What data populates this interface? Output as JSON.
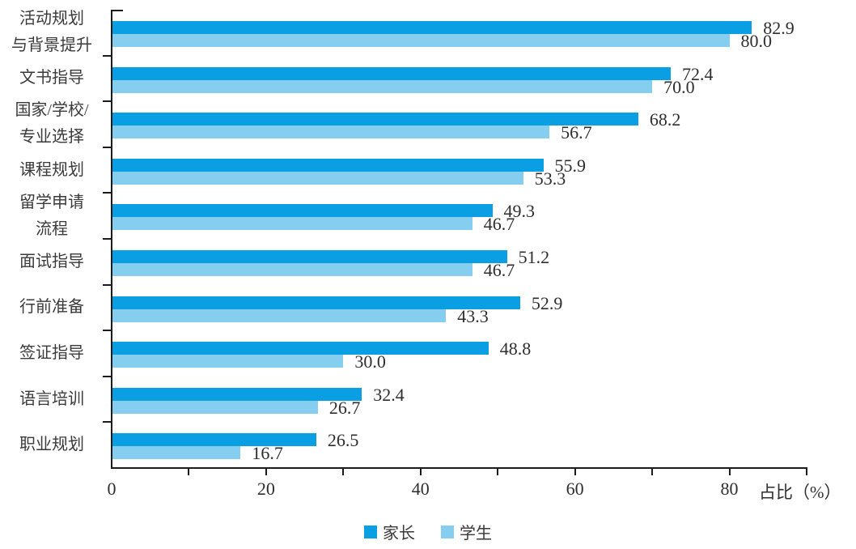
{
  "chart_data": {
    "type": "bar",
    "orientation": "horizontal",
    "categories": [
      "活动规划\n与背景提升",
      "文书指导",
      "国家/学校/\n专业选择",
      "课程规划",
      "留学申请\n流程",
      "面试指导",
      "行前准备",
      "签证指导",
      "语言培训",
      "职业规划"
    ],
    "series": [
      {
        "name": "家长",
        "color": "#0A9EE2",
        "values": [
          82.9,
          72.4,
          68.2,
          55.9,
          49.3,
          51.2,
          52.9,
          48.8,
          32.4,
          26.5
        ]
      },
      {
        "name": "学生",
        "color": "#85CEF0",
        "values": [
          80.0,
          70.0,
          56.7,
          53.3,
          46.7,
          46.7,
          43.3,
          30.0,
          26.7,
          16.7
        ]
      }
    ],
    "xlabel": "占比（%）",
    "xlim": [
      0,
      90
    ],
    "x_major_ticks": [
      0,
      20,
      40,
      60,
      80
    ],
    "x_minor_tick_step": 10,
    "value_labels_shown": true,
    "value_label_decimals": 1,
    "legend_position": "bottom-center",
    "grid": false,
    "axis_color": "#1c1c1c"
  }
}
